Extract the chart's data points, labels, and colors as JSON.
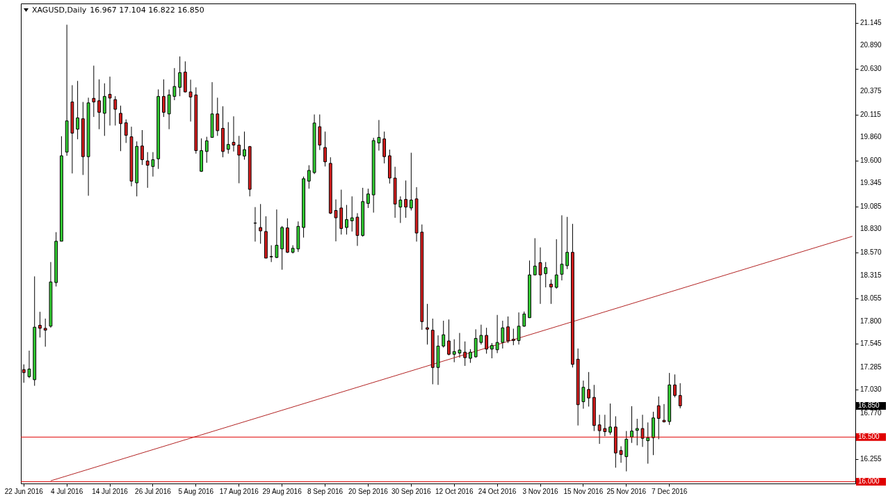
{
  "chart_data": {
    "type": "candlestick",
    "title": "XAGUSD,Daily",
    "subtitle": "16.967 17.104 16.822 16.850",
    "categories": [
      "22 Jun 2016",
      null,
      null,
      null,
      null,
      null,
      null,
      null,
      "4 Jul 2016",
      null,
      null,
      null,
      null,
      null,
      null,
      null,
      "14 Jul 2016",
      null,
      null,
      null,
      null,
      null,
      null,
      null,
      "26 Jul 2016",
      null,
      null,
      null,
      null,
      null,
      null,
      null,
      "5 Aug 2016",
      null,
      null,
      null,
      null,
      null,
      null,
      null,
      "17 Aug 2016",
      null,
      null,
      null,
      null,
      null,
      null,
      null,
      "29 Aug 2016",
      null,
      null,
      null,
      null,
      null,
      null,
      null,
      "8 Sep 2016",
      null,
      null,
      null,
      null,
      null,
      null,
      null,
      "20 Sep 2016",
      null,
      null,
      null,
      null,
      null,
      null,
      null,
      "30 Sep 2016",
      null,
      null,
      null,
      null,
      null,
      null,
      null,
      "12 Oct 2016",
      null,
      null,
      null,
      null,
      null,
      null,
      null,
      "24 Oct 2016",
      null,
      null,
      null,
      null,
      null,
      null,
      null,
      "3 Nov 2016",
      null,
      null,
      null,
      null,
      null,
      null,
      null,
      "15 Nov 2016",
      null,
      null,
      null,
      null,
      null,
      null,
      null,
      "25 Nov 2016",
      null,
      null,
      null,
      null,
      null,
      null,
      null,
      "7 Dec 2016",
      null,
      null,
      null,
      null,
      null,
      null,
      null,
      null,
      null,
      null,
      null,
      null,
      null,
      null,
      null,
      null,
      null,
      null,
      null,
      null,
      null,
      null,
      null,
      null,
      null,
      null,
      null,
      null,
      null,
      null,
      null,
      null,
      null,
      null
    ],
    "ohlc": [
      [
        17.257,
        17.315,
        17.109,
        17.222
      ],
      [
        17.178,
        17.469,
        17.161,
        17.263
      ],
      [
        17.143,
        18.301,
        17.075,
        17.732
      ],
      [
        17.753,
        17.904,
        17.616,
        17.719
      ],
      [
        17.719,
        17.828,
        17.513,
        17.698
      ],
      [
        17.743,
        18.462,
        17.726,
        18.239
      ],
      [
        18.232,
        18.797,
        18.188,
        18.695
      ],
      [
        18.695,
        19.872,
        18.695,
        19.653
      ],
      [
        19.694,
        21.122,
        19.653,
        20.044
      ],
      [
        20.256,
        20.444,
        19.455,
        19.907
      ],
      [
        19.951,
        20.492,
        19.838,
        20.078
      ],
      [
        20.068,
        20.256,
        19.438,
        19.643
      ],
      [
        19.643,
        20.304,
        19.205,
        20.246
      ],
      [
        20.297,
        20.663,
        20.088,
        20.256
      ],
      [
        20.27,
        20.509,
        19.951,
        20.14
      ],
      [
        20.129,
        20.465,
        19.876,
        20.318
      ],
      [
        20.342,
        20.54,
        19.992,
        20.3
      ],
      [
        20.283,
        20.321,
        19.992,
        20.174
      ],
      [
        20.129,
        20.215,
        19.705,
        20.013
      ],
      [
        20.023,
        20.061,
        19.797,
        19.883
      ],
      [
        19.866,
        19.979,
        19.311,
        19.369
      ],
      [
        19.349,
        19.814,
        19.198,
        19.759
      ],
      [
        19.763,
        19.941,
        19.55,
        19.609
      ],
      [
        19.595,
        19.694,
        19.294,
        19.547
      ],
      [
        19.533,
        19.694,
        19.42,
        19.609
      ],
      [
        19.619,
        20.397,
        19.506,
        20.318
      ],
      [
        20.318,
        20.509,
        20.088,
        20.14
      ],
      [
        20.122,
        20.396,
        19.951,
        20.335
      ],
      [
        20.318,
        20.636,
        20.276,
        20.43
      ],
      [
        20.42,
        20.766,
        20.321,
        20.585
      ],
      [
        20.591,
        20.711,
        20.362,
        20.369
      ],
      [
        20.369,
        20.506,
        20.037,
        20.311
      ],
      [
        20.335,
        20.42,
        19.677,
        19.711
      ],
      [
        19.479,
        19.848,
        19.472,
        19.711
      ],
      [
        19.701,
        19.866,
        19.575,
        19.821
      ],
      [
        19.859,
        20.478,
        19.855,
        20.122
      ],
      [
        20.122,
        20.304,
        19.876,
        19.934
      ],
      [
        19.961,
        20.208,
        19.636,
        19.701
      ],
      [
        19.725,
        20.03,
        19.677,
        19.78
      ],
      [
        19.804,
        20.095,
        19.701,
        19.773
      ],
      [
        19.773,
        19.876,
        19.345,
        19.66
      ],
      [
        19.65,
        19.924,
        19.609,
        19.722
      ],
      [
        19.756,
        19.763,
        19.198,
        19.277
      ],
      [
        18.9,
        19.078,
        18.691,
        18.897
      ],
      [
        18.849,
        19.112,
        18.667,
        18.811
      ],
      [
        18.804,
        18.975,
        18.506,
        18.506
      ],
      [
        18.524,
        18.65,
        18.462,
        18.52
      ],
      [
        18.513,
        19.051,
        18.506,
        18.65
      ],
      [
        18.609,
        18.866,
        18.376,
        18.849
      ],
      [
        18.845,
        18.951,
        18.564,
        18.571
      ],
      [
        18.571,
        18.65,
        18.558,
        18.616
      ],
      [
        18.609,
        18.917,
        18.575,
        18.862
      ],
      [
        18.849,
        19.42,
        18.736,
        19.396
      ],
      [
        19.369,
        19.547,
        19.284,
        19.489
      ],
      [
        19.465,
        20.116,
        19.448,
        20.02
      ],
      [
        19.979,
        20.116,
        19.718,
        19.773
      ],
      [
        19.746,
        19.924,
        19.533,
        19.585
      ],
      [
        19.568,
        19.636,
        19.0,
        19.01
      ],
      [
        19.04,
        19.164,
        18.694,
        18.958
      ],
      [
        19.068,
        19.273,
        18.77,
        18.838
      ],
      [
        18.849,
        19.102,
        18.77,
        18.938
      ],
      [
        18.924,
        19.198,
        18.804,
        18.958
      ],
      [
        18.965,
        19.01,
        18.643,
        18.76
      ],
      [
        18.76,
        19.294,
        18.746,
        19.14
      ],
      [
        19.119,
        19.284,
        19.068,
        19.225
      ],
      [
        19.215,
        19.855,
        19.016,
        19.824
      ],
      [
        19.797,
        20.054,
        19.711,
        19.859
      ],
      [
        19.842,
        19.924,
        19.568,
        19.643
      ],
      [
        19.653,
        19.722,
        19.342,
        19.403
      ],
      [
        19.403,
        19.53,
        18.958,
        19.112
      ],
      [
        19.078,
        19.198,
        18.9,
        19.157
      ],
      [
        19.164,
        19.376,
        18.958,
        19.078
      ],
      [
        19.068,
        19.687,
        19.04,
        19.157
      ],
      [
        19.17,
        19.301,
        18.691,
        18.787
      ],
      [
        18.797,
        18.883,
        17.702,
        17.794
      ],
      [
        17.726,
        17.993,
        17.537,
        17.709
      ],
      [
        17.698,
        17.828,
        17.092,
        17.28
      ],
      [
        17.28,
        17.64,
        17.085,
        17.52
      ],
      [
        17.52,
        17.804,
        17.503,
        17.647
      ],
      [
        17.578,
        17.818,
        17.417,
        17.428
      ],
      [
        17.428,
        17.596,
        17.339,
        17.459
      ],
      [
        17.442,
        17.667,
        17.39,
        17.476
      ],
      [
        17.452,
        17.572,
        17.298,
        17.39
      ],
      [
        17.383,
        17.486,
        17.332,
        17.452
      ],
      [
        17.4,
        17.708,
        17.39,
        17.606
      ],
      [
        17.561,
        17.76,
        17.537,
        17.64
      ],
      [
        17.64,
        17.725,
        17.435,
        17.486
      ],
      [
        17.486,
        17.554,
        17.383,
        17.527
      ],
      [
        17.479,
        17.869,
        17.441,
        17.561
      ],
      [
        17.561,
        17.804,
        17.493,
        17.725
      ],
      [
        17.736,
        17.852,
        17.554,
        17.578
      ],
      [
        17.596,
        17.715,
        17.53,
        17.582
      ],
      [
        17.582,
        17.897,
        17.537,
        17.743
      ],
      [
        17.743,
        17.907,
        17.736,
        17.88
      ],
      [
        17.838,
        18.479,
        17.835,
        18.318
      ],
      [
        18.318,
        18.729,
        18.314,
        18.417
      ],
      [
        18.455,
        18.626,
        17.993,
        18.318
      ],
      [
        18.332,
        18.462,
        18.178,
        18.4
      ],
      [
        18.215,
        18.267,
        17.993,
        18.181
      ],
      [
        18.178,
        18.718,
        18.164,
        18.318
      ],
      [
        18.325,
        18.986,
        18.256,
        18.438
      ],
      [
        18.421,
        18.968,
        18.383,
        18.571
      ],
      [
        18.571,
        18.89,
        17.28,
        17.315
      ],
      [
        17.373,
        17.493,
        16.63,
        16.863
      ],
      [
        16.897,
        17.133,
        16.818,
        17.058
      ],
      [
        17.034,
        17.229,
        16.842,
        16.938
      ],
      [
        16.945,
        17.085,
        16.568,
        16.63
      ],
      [
        16.637,
        16.75,
        16.424,
        16.572
      ],
      [
        16.596,
        16.75,
        16.51,
        16.561
      ],
      [
        16.555,
        16.876,
        16.527,
        16.613
      ],
      [
        16.613,
        16.733,
        16.157,
        16.322
      ],
      [
        16.349,
        16.397,
        16.212,
        16.305
      ],
      [
        16.281,
        16.568,
        16.116,
        16.476
      ],
      [
        16.5,
        16.846,
        16.435,
        16.568
      ],
      [
        16.575,
        16.705,
        16.407,
        16.596
      ],
      [
        16.596,
        16.75,
        16.39,
        16.486
      ],
      [
        16.459,
        16.664,
        16.202,
        16.493
      ],
      [
        16.493,
        16.784,
        16.298,
        16.715
      ],
      [
        16.852,
        16.955,
        16.476,
        16.709
      ],
      [
        16.688,
        16.87,
        16.664,
        16.671
      ],
      [
        16.674,
        17.219,
        16.637,
        17.085
      ],
      [
        17.085,
        17.202,
        16.945,
        16.967
      ],
      [
        16.967,
        17.104,
        16.822,
        16.85
      ],
      null,
      null,
      null,
      null,
      null,
      null,
      null,
      null,
      null,
      null,
      null,
      null,
      null,
      null,
      null,
      null,
      null,
      null,
      null,
      null,
      null,
      null,
      null,
      null,
      null,
      null,
      null,
      null,
      null,
      null,
      null,
      null
    ],
    "colors": [
      "#d41c1c",
      "#32cd32",
      "#32cd32",
      "#d41c1c",
      "#d41c1c",
      "#32cd32",
      "#32cd32",
      "#32cd32",
      "#32cd32",
      "#d41c1c",
      "#32cd32",
      "#d41c1c",
      "#32cd32",
      "#d41c1c",
      "#d41c1c",
      "#32cd32",
      "#d41c1c",
      "#d41c1c",
      "#d41c1c",
      "#d41c1c",
      "#d41c1c",
      "#32cd32",
      "#d41c1c",
      "#d41c1c",
      "#32cd32",
      "#32cd32",
      "#d41c1c",
      "#32cd32",
      "#32cd32",
      "#32cd32",
      "#d41c1c",
      "#d41c1c",
      "#d41c1c",
      "#32cd32",
      "#32cd32",
      "#32cd32",
      "#d41c1c",
      "#d41c1c",
      "#32cd32",
      "#d41c1c",
      "#d41c1c",
      "#32cd32",
      "#d41c1c",
      "#d41c1c",
      "#d41c1c",
      "#d41c1c",
      "#d41c1c",
      "#32cd32",
      "#32cd32",
      "#d41c1c",
      "#32cd32",
      "#32cd32",
      "#32cd32",
      "#32cd32",
      "#32cd32",
      "#d41c1c",
      "#d41c1c",
      "#d41c1c",
      "#d41c1c",
      "#d41c1c",
      "#32cd32",
      "#32cd32",
      "#d41c1c",
      "#32cd32",
      "#32cd32",
      "#32cd32",
      "#32cd32",
      "#d41c1c",
      "#d41c1c",
      "#d41c1c",
      "#32cd32",
      "#d41c1c",
      "#32cd32",
      "#d41c1c",
      "#d41c1c",
      "#d41c1c",
      "#d41c1c",
      "#32cd32",
      "#32cd32",
      "#d41c1c",
      "#32cd32",
      "#32cd32",
      "#d41c1c",
      "#32cd32",
      "#32cd32",
      "#32cd32",
      "#d41c1c",
      "#32cd32",
      "#32cd32",
      "#32cd32",
      "#d41c1c",
      "#d41c1c",
      "#32cd32",
      "#32cd32",
      "#32cd32",
      "#32cd32",
      "#d41c1c",
      "#32cd32",
      "#d41c1c",
      "#32cd32",
      "#32cd32",
      "#32cd32",
      "#d41c1c",
      "#d41c1c",
      "#32cd32",
      "#d41c1c",
      "#d41c1c",
      "#d41c1c",
      "#d41c1c",
      "#32cd32",
      "#d41c1c",
      "#d41c1c",
      "#32cd32",
      "#32cd32",
      "#32cd32",
      "#d41c1c",
      "#32cd32",
      "#32cd32",
      "#d41c1c",
      "#d41c1c",
      "#32cd32",
      "#d41c1c",
      "#d41c1c",
      null,
      null,
      null,
      null,
      null,
      null,
      null,
      null,
      null,
      null,
      null,
      null,
      null,
      null,
      null,
      null,
      null,
      null,
      null,
      null,
      null,
      null,
      null,
      null,
      null,
      null,
      null,
      null,
      null,
      null,
      null,
      null
    ],
    "series": [
      {
        "type": "line",
        "color": "#b22222",
        "values": [
          null,
          null,
          null,
          null,
          null,
          16.01,
          null,
          null,
          null,
          null,
          null,
          null,
          null,
          null,
          null,
          null,
          null,
          null,
          null,
          null,
          null,
          null,
          null,
          null,
          null,
          null,
          null,
          null,
          null,
          null,
          null,
          null,
          null,
          null,
          null,
          null,
          null,
          null,
          null,
          null,
          null,
          null,
          null,
          null,
          null,
          null,
          null,
          null,
          null,
          null,
          null,
          null,
          null,
          null,
          null,
          null,
          null,
          null,
          null,
          null,
          null,
          null,
          null,
          null,
          null,
          null,
          null,
          null,
          null,
          null,
          null,
          null,
          null,
          null,
          null,
          null,
          null,
          null,
          null,
          null,
          null,
          null,
          null,
          null,
          null,
          null,
          null,
          null,
          null,
          null,
          null,
          null,
          null,
          null,
          null,
          null,
          null,
          null,
          null,
          null,
          null,
          null,
          null,
          null,
          null,
          null,
          null,
          null,
          null,
          null,
          null,
          null,
          null,
          null,
          null,
          null,
          null,
          null,
          null,
          null,
          null,
          null,
          null,
          null,
          null,
          null,
          null,
          null,
          null,
          null,
          null,
          null,
          null,
          null,
          null,
          null,
          null,
          null,
          null,
          null,
          null,
          null,
          null,
          null,
          null,
          null,
          null,
          null,
          null,
          null,
          null,
          null,
          null,
          null,
          18.75
        ]
      }
    ],
    "ylim": [
      15.98,
      21.36
    ],
    "yticks": [
      21.145,
      {
        "value": 20.89,
        "label": "20.890"
      },
      {
        "value": 20.63,
        "label": "20.630"
      },
      20.375,
      20.115,
      {
        "value": 19.86,
        "label": "19.860"
      },
      {
        "value": 19.6,
        "label": "19.600"
      },
      19.345,
      19.085,
      {
        "value": 18.83,
        "label": "18.830"
      },
      {
        "value": 18.57,
        "label": "18.570"
      },
      18.315,
      18.055,
      {
        "value": 17.8,
        "label": "17.800"
      },
      17.545,
      17.285,
      {
        "value": 17.03,
        "label": "17.030"
      },
      {
        "value": 16.77,
        "label": "16.770"
      },
      16.255
    ],
    "ref_lines": [
      {
        "axis": "y",
        "value": 16.5,
        "label": "16.500",
        "color": "#e00000"
      },
      {
        "axis": "y",
        "value": 16,
        "label": "16.000",
        "color": "#e00000"
      }
    ],
    "annotations": [
      "16.850"
    ]
  }
}
